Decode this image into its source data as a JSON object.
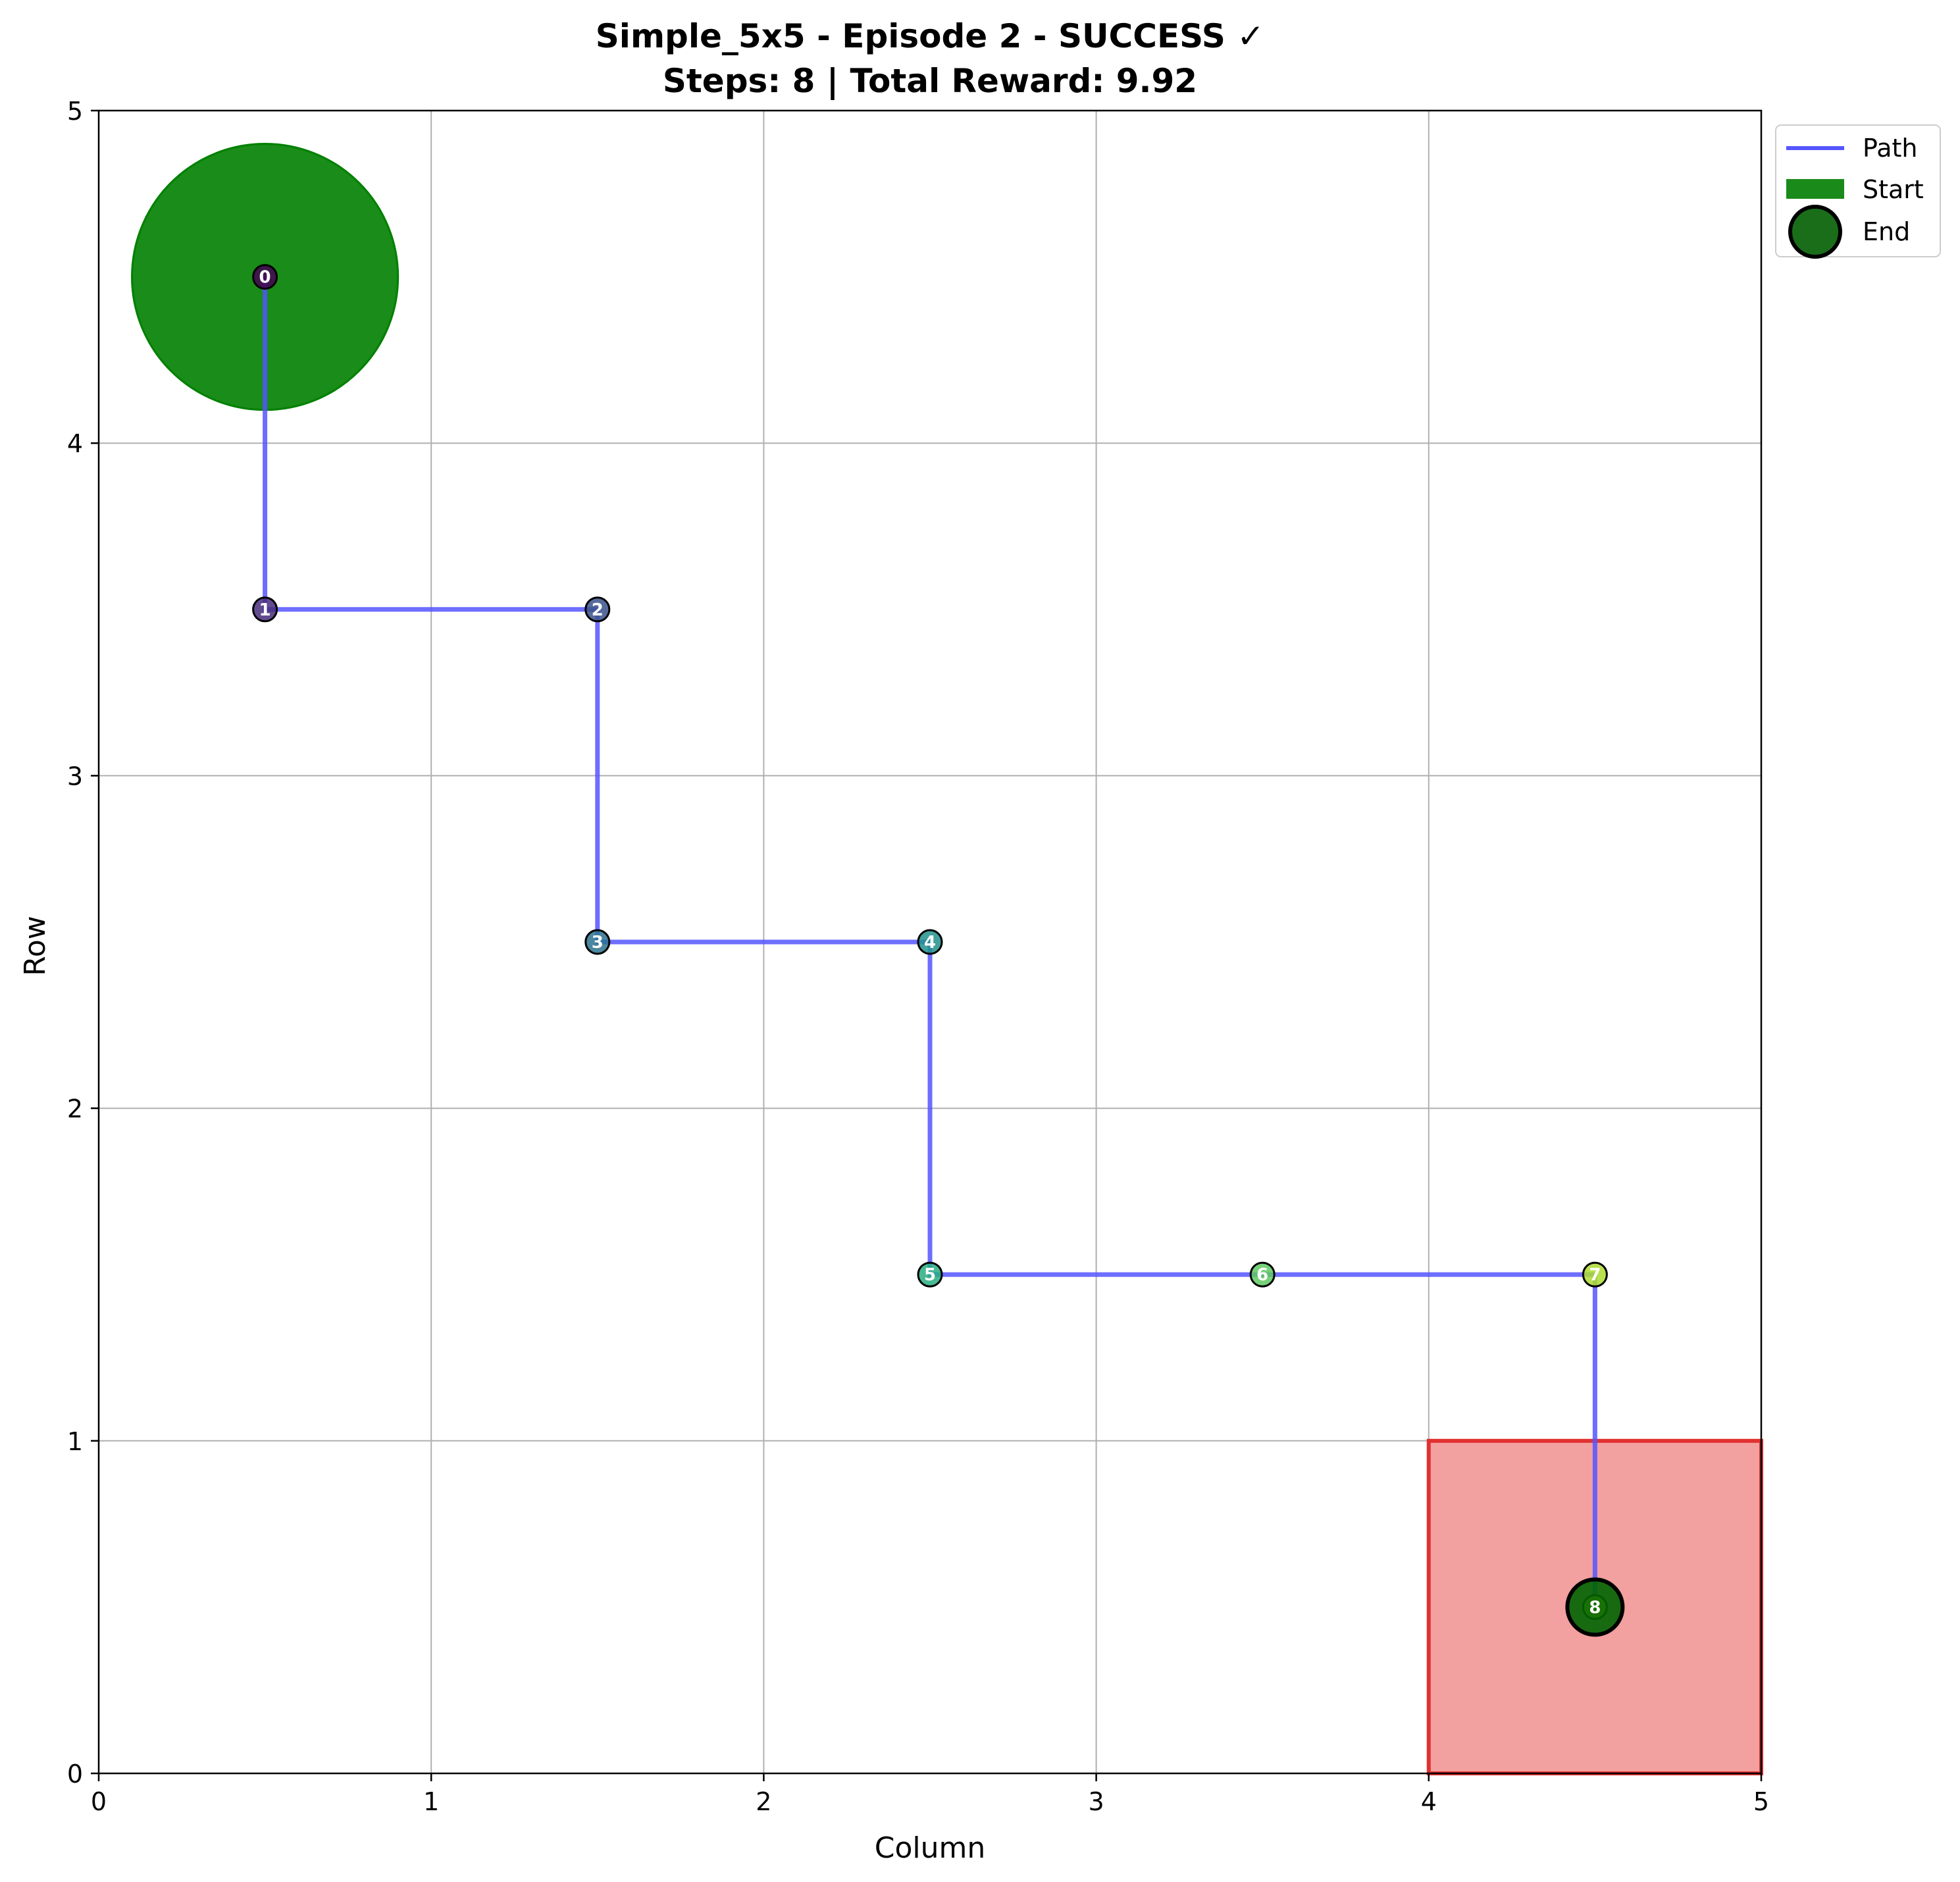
{
  "chart_data": {
    "type": "line",
    "title": "Simple_5x5 - Episode 2 - SUCCESS ✓",
    "subtitle": "Steps: 8 | Total Reward: 9.92",
    "xlabel": "Column",
    "ylabel": "Row",
    "xlim": [
      0,
      5
    ],
    "ylim": [
      0,
      5
    ],
    "x_ticks": [
      "0",
      "1",
      "2",
      "3",
      "4",
      "5"
    ],
    "y_ticks": [
      "0",
      "1",
      "2",
      "3",
      "4",
      "5"
    ],
    "grid": true,
    "legend_placement": "outside top-right",
    "series": [
      {
        "name": "Path",
        "color": "#5555ff",
        "x": [
          0.5,
          0.5,
          1.5,
          1.5,
          2.5,
          2.5,
          3.5,
          4.5,
          4.5
        ],
        "y": [
          4.5,
          3.5,
          3.5,
          2.5,
          2.5,
          1.5,
          1.5,
          1.5,
          0.5
        ]
      }
    ],
    "step_labels": [
      "0",
      "1",
      "2",
      "3",
      "4",
      "5",
      "6",
      "7",
      "8"
    ],
    "step_colors": [
      "#440154",
      "#472d7b",
      "#3b528b",
      "#2c728e",
      "#21918c",
      "#28ae80",
      "#5ec962",
      "#addc30",
      "#fde725"
    ],
    "start": {
      "x": 0.5,
      "y": 4.5,
      "radius": 0.4,
      "color": "#008000"
    },
    "end": {
      "x": 4.5,
      "y": 0.5,
      "color": "#006400"
    },
    "goal_cell": {
      "x": [
        4,
        5
      ],
      "y": [
        0,
        1
      ],
      "fill": "#f2a0a0",
      "edge": "#e03030"
    },
    "legend": [
      {
        "label": "Path",
        "kind": "line",
        "color": "#5555ff"
      },
      {
        "label": "Start",
        "kind": "patch",
        "color": "#1a8a1a"
      },
      {
        "label": "End",
        "kind": "circle",
        "color": "#1a6e1a"
      }
    ]
  }
}
